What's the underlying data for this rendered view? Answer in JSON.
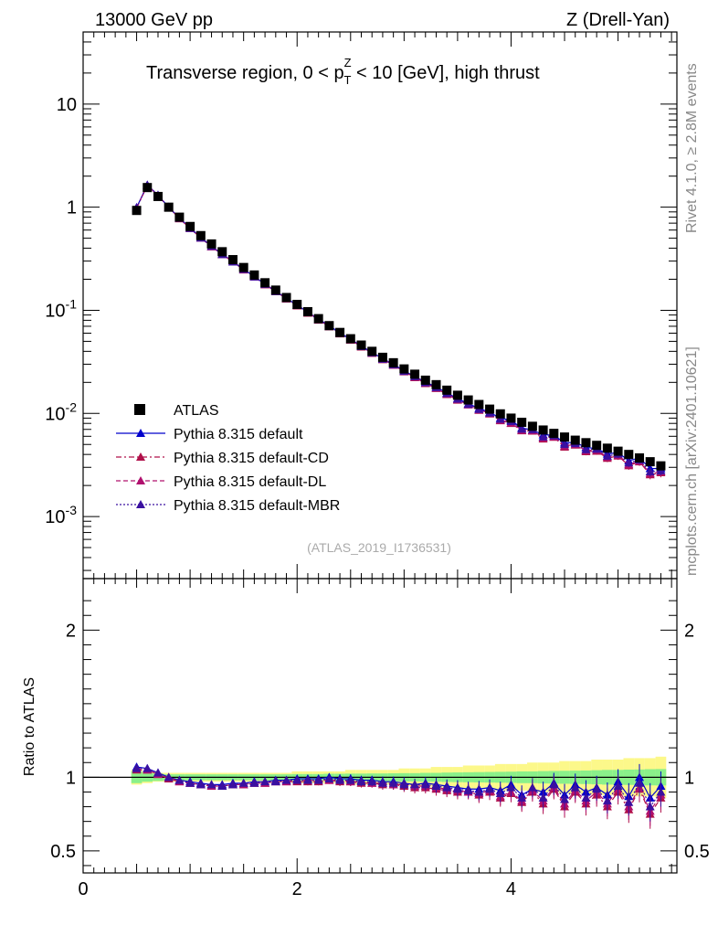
{
  "header": {
    "energy_label": "13000 GeV pp",
    "process_label": "Z (Drell-Yan)",
    "title_pre": "Transverse region, 0 < p",
    "title_sup": "Z",
    "title_sub": "T",
    "title_post": " < 10 [GeV], high thrust"
  },
  "side_labels": {
    "rivet": "Rivet 4.1.0, ≥ 2.8M events",
    "mcplots": "mcplots.cern.ch [arXiv:2401.10621]"
  },
  "analysis_tag": "(ATLAS_2019_I1736531)",
  "ratio_ylabel": "Ratio to ATLAS",
  "colors": {
    "data": "#000000",
    "default": "#0000cc",
    "cd": "#b0104a",
    "dl": "#b0106e",
    "mbr": "#3a10a0",
    "band_inner": "#8af08a",
    "band_outer": "#fcf88a"
  },
  "chart_data": [
    {
      "type": "scatter",
      "yscale": "log",
      "xlim": [
        0,
        5.55
      ],
      "ylim": [
        0.00025,
        50
      ],
      "x_ticks": [
        "0",
        "2",
        "4"
      ],
      "y_ticks": [
        {
          "base": "10",
          "exp": "-3",
          "value": 0.001
        },
        {
          "base": "10",
          "exp": "-2",
          "value": 0.01
        },
        {
          "base": "10",
          "exp": "-1",
          "value": 0.1
        },
        {
          "base": "1",
          "exp": "",
          "value": 1
        },
        {
          "base": "10",
          "exp": "",
          "value": 10
        }
      ],
      "x": [
        0.5,
        0.6,
        0.7,
        0.8,
        0.9,
        1.0,
        1.1,
        1.2,
        1.3,
        1.4,
        1.5,
        1.6,
        1.7,
        1.8,
        1.9,
        2.0,
        2.1,
        2.2,
        2.3,
        2.4,
        2.5,
        2.6,
        2.7,
        2.8,
        2.9,
        3.0,
        3.1,
        3.2,
        3.3,
        3.4,
        3.5,
        3.6,
        3.7,
        3.8,
        3.9,
        4.0,
        4.1,
        4.2,
        4.3,
        4.4,
        4.5,
        4.6,
        4.7,
        4.8,
        4.9,
        5.0,
        5.1,
        5.2,
        5.3,
        5.4
      ],
      "data_values": [
        0.93,
        1.55,
        1.27,
        1.0,
        0.8,
        0.65,
        0.53,
        0.44,
        0.37,
        0.31,
        0.26,
        0.22,
        0.185,
        0.157,
        0.133,
        0.114,
        0.097,
        0.083,
        0.071,
        0.061,
        0.053,
        0.046,
        0.04,
        0.035,
        0.031,
        0.027,
        0.024,
        0.021,
        0.019,
        0.0168,
        0.015,
        0.0135,
        0.0122,
        0.011,
        0.0099,
        0.009,
        0.0082,
        0.0075,
        0.0069,
        0.0064,
        0.0059,
        0.0055,
        0.0052,
        0.0049,
        0.0046,
        0.0043,
        0.004,
        0.0037,
        0.0034,
        0.0031
      ],
      "legend": [
        {
          "label": "ATLAS",
          "key": "data"
        },
        {
          "label": "Pythia 8.315 default",
          "key": "default"
        },
        {
          "label": "Pythia 8.315 default-CD",
          "key": "cd"
        },
        {
          "label": "Pythia 8.315 default-DL",
          "key": "dl"
        },
        {
          "label": "Pythia 8.315 default-MBR",
          "key": "mbr"
        }
      ],
      "xlabel": "",
      "ylabel": ""
    },
    {
      "type": "line",
      "title": "Ratio to ATLAS",
      "xlim": [
        0,
        5.55
      ],
      "ylim": [
        0.35,
        2.35
      ],
      "x_ticks": [
        "0",
        "2",
        "4"
      ],
      "y_ticks": [
        "0.5",
        "1",
        "2"
      ],
      "x": [
        0.5,
        0.6,
        0.7,
        0.8,
        0.9,
        1.0,
        1.1,
        1.2,
        1.3,
        1.4,
        1.5,
        1.6,
        1.7,
        1.8,
        1.9,
        2.0,
        2.1,
        2.2,
        2.3,
        2.4,
        2.5,
        2.6,
        2.7,
        2.8,
        2.9,
        3.0,
        3.1,
        3.2,
        3.3,
        3.4,
        3.5,
        3.6,
        3.7,
        3.8,
        3.9,
        4.0,
        4.1,
        4.2,
        4.3,
        4.4,
        4.5,
        4.6,
        4.7,
        4.8,
        4.9,
        5.0,
        5.1,
        5.2,
        5.3,
        5.4
      ],
      "band_inner": [
        0.04,
        0.03,
        0.025,
        0.02,
        0.02,
        0.02,
        0.02,
        0.02,
        0.02,
        0.02,
        0.02,
        0.02,
        0.02,
        0.02,
        0.02,
        0.022,
        0.022,
        0.022,
        0.024,
        0.024,
        0.025,
        0.025,
        0.026,
        0.026,
        0.027,
        0.028,
        0.028,
        0.03,
        0.03,
        0.032,
        0.033,
        0.034,
        0.035,
        0.036,
        0.037,
        0.038,
        0.04,
        0.04,
        0.042,
        0.043,
        0.044,
        0.045,
        0.046,
        0.048,
        0.05,
        0.05,
        0.052,
        0.053,
        0.055,
        0.056
      ],
      "band_outer": [
        0.05,
        0.04,
        0.03,
        0.03,
        0.03,
        0.03,
        0.03,
        0.03,
        0.03,
        0.03,
        0.03,
        0.03,
        0.03,
        0.03,
        0.03,
        0.04,
        0.04,
        0.04,
        0.04,
        0.04,
        0.05,
        0.05,
        0.05,
        0.05,
        0.05,
        0.06,
        0.06,
        0.06,
        0.07,
        0.07,
        0.07,
        0.08,
        0.08,
        0.08,
        0.09,
        0.09,
        0.09,
        0.1,
        0.1,
        0.1,
        0.11,
        0.11,
        0.11,
        0.12,
        0.12,
        0.12,
        0.13,
        0.13,
        0.13,
        0.14
      ],
      "series": [
        {
          "name": "Pythia 8.315 default",
          "key": "default",
          "style": "solid",
          "values": [
            1.07,
            1.06,
            1.03,
            1.0,
            0.98,
            0.97,
            0.96,
            0.95,
            0.95,
            0.96,
            0.96,
            0.97,
            0.97,
            0.98,
            0.98,
            0.99,
            0.99,
            0.99,
            1.0,
            0.99,
            0.99,
            0.98,
            0.98,
            0.97,
            0.97,
            0.96,
            0.95,
            0.96,
            0.95,
            0.94,
            0.93,
            0.92,
            0.92,
            0.93,
            0.91,
            0.95,
            0.88,
            0.92,
            0.9,
            0.96,
            0.88,
            0.95,
            0.9,
            0.93,
            0.88,
            0.97,
            0.87,
            1.0,
            0.86,
            0.94
          ],
          "errors": [
            0.02,
            0.02,
            0.02,
            0.015,
            0.015,
            0.015,
            0.015,
            0.015,
            0.015,
            0.02,
            0.02,
            0.02,
            0.02,
            0.02,
            0.02,
            0.02,
            0.025,
            0.025,
            0.025,
            0.03,
            0.03,
            0.03,
            0.03,
            0.035,
            0.035,
            0.04,
            0.04,
            0.04,
            0.045,
            0.045,
            0.05,
            0.05,
            0.055,
            0.055,
            0.06,
            0.06,
            0.065,
            0.065,
            0.07,
            0.07,
            0.075,
            0.075,
            0.08,
            0.08,
            0.085,
            0.085,
            0.09,
            0.09,
            0.1,
            0.1
          ]
        },
        {
          "name": "Pythia 8.315 default-CD",
          "key": "cd",
          "style": "dashdot",
          "values": [
            1.05,
            1.05,
            1.02,
            0.99,
            0.97,
            0.96,
            0.95,
            0.94,
            0.94,
            0.95,
            0.95,
            0.96,
            0.96,
            0.97,
            0.97,
            0.97,
            0.97,
            0.97,
            0.98,
            0.97,
            0.97,
            0.96,
            0.96,
            0.95,
            0.95,
            0.94,
            0.93,
            0.93,
            0.92,
            0.91,
            0.9,
            0.9,
            0.88,
            0.9,
            0.86,
            0.89,
            0.83,
            0.9,
            0.82,
            0.92,
            0.8,
            0.9,
            0.82,
            0.88,
            0.8,
            0.9,
            0.78,
            0.92,
            0.75,
            0.86
          ],
          "errors": [
            0.02,
            0.02,
            0.02,
            0.015,
            0.015,
            0.015,
            0.015,
            0.015,
            0.015,
            0.02,
            0.02,
            0.02,
            0.02,
            0.02,
            0.02,
            0.02,
            0.025,
            0.025,
            0.025,
            0.03,
            0.03,
            0.03,
            0.03,
            0.035,
            0.035,
            0.04,
            0.04,
            0.04,
            0.045,
            0.045,
            0.05,
            0.05,
            0.055,
            0.055,
            0.06,
            0.06,
            0.065,
            0.065,
            0.07,
            0.07,
            0.075,
            0.075,
            0.08,
            0.08,
            0.085,
            0.085,
            0.09,
            0.09,
            0.1,
            0.1
          ]
        },
        {
          "name": "Pythia 8.315 default-DL",
          "key": "dl",
          "style": "dashed",
          "values": [
            1.06,
            1.05,
            1.02,
            1.0,
            0.97,
            0.96,
            0.95,
            0.94,
            0.94,
            0.95,
            0.95,
            0.96,
            0.96,
            0.97,
            0.97,
            0.98,
            0.98,
            0.98,
            0.98,
            0.98,
            0.97,
            0.97,
            0.96,
            0.96,
            0.95,
            0.95,
            0.94,
            0.94,
            0.93,
            0.92,
            0.91,
            0.9,
            0.89,
            0.91,
            0.87,
            0.9,
            0.84,
            0.91,
            0.84,
            0.93,
            0.82,
            0.91,
            0.84,
            0.9,
            0.82,
            0.92,
            0.8,
            0.93,
            0.77,
            0.88
          ],
          "errors": [
            0.02,
            0.02,
            0.02,
            0.015,
            0.015,
            0.015,
            0.015,
            0.015,
            0.015,
            0.02,
            0.02,
            0.02,
            0.02,
            0.02,
            0.02,
            0.02,
            0.025,
            0.025,
            0.025,
            0.03,
            0.03,
            0.03,
            0.03,
            0.035,
            0.035,
            0.04,
            0.04,
            0.04,
            0.045,
            0.045,
            0.05,
            0.05,
            0.055,
            0.055,
            0.06,
            0.06,
            0.065,
            0.065,
            0.07,
            0.07,
            0.075,
            0.075,
            0.08,
            0.08,
            0.085,
            0.085,
            0.09,
            0.09,
            0.1,
            0.1
          ]
        },
        {
          "name": "Pythia 8.315 default-MBR",
          "key": "mbr",
          "style": "dotted",
          "values": [
            1.06,
            1.06,
            1.03,
            1.0,
            0.98,
            0.96,
            0.95,
            0.95,
            0.94,
            0.95,
            0.96,
            0.96,
            0.97,
            0.97,
            0.98,
            0.98,
            0.98,
            0.98,
            0.99,
            0.98,
            0.98,
            0.97,
            0.97,
            0.96,
            0.96,
            0.95,
            0.95,
            0.95,
            0.94,
            0.93,
            0.92,
            0.91,
            0.9,
            0.92,
            0.89,
            0.93,
            0.86,
            0.93,
            0.86,
            0.95,
            0.85,
            0.93,
            0.86,
            0.92,
            0.84,
            0.94,
            0.83,
            0.96,
            0.8,
            0.9
          ],
          "errors": [
            0.02,
            0.02,
            0.02,
            0.015,
            0.015,
            0.015,
            0.015,
            0.015,
            0.015,
            0.02,
            0.02,
            0.02,
            0.02,
            0.02,
            0.02,
            0.02,
            0.025,
            0.025,
            0.025,
            0.03,
            0.03,
            0.03,
            0.03,
            0.035,
            0.035,
            0.04,
            0.04,
            0.04,
            0.045,
            0.045,
            0.05,
            0.05,
            0.055,
            0.055,
            0.06,
            0.06,
            0.065,
            0.065,
            0.07,
            0.07,
            0.075,
            0.075,
            0.08,
            0.08,
            0.085,
            0.085,
            0.09,
            0.09,
            0.1,
            0.1
          ]
        }
      ]
    }
  ]
}
